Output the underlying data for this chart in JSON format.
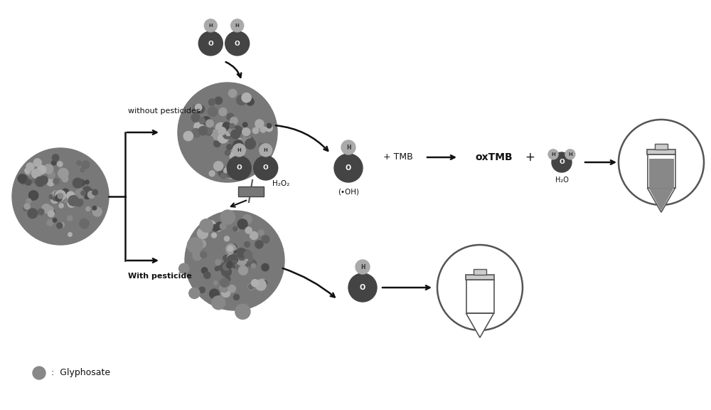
{
  "bg_color": "#ffffff",
  "text_color": "#111111",
  "label_without": "without pesticides",
  "label_with": "With pesticide",
  "label_tmb": "+ TMB",
  "label_oxtmb": "oxTMB",
  "label_plus": "+",
  "label_h2o": "H₂O",
  "label_h2o2": "H₂O₂",
  "label_oh": "(•OH)",
  "label_glyphosate": ":  Glyphosate",
  "figsize": [
    10,
    5.76
  ],
  "dpi": 100
}
